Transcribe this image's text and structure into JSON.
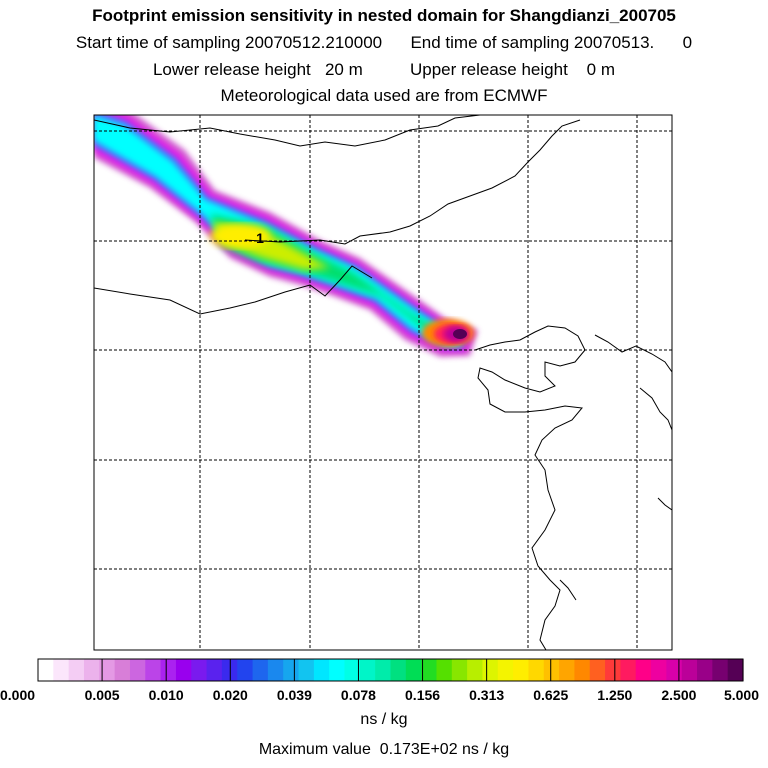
{
  "chart_data": {
    "type": "heatmap",
    "title": "Footprint emission sensitivity in nested domain for Shangdianzi_200705",
    "subtitle_lines": [
      "Start time of sampling 20070512.210000      End time of sampling 20070513.      0",
      "Lower release height   20 m          Upper release height    0 m",
      "Meteorological data used are from ECMWF"
    ],
    "colorbar": {
      "tick_labels": [
        "0.000",
        "0.005",
        "0.010",
        "0.020",
        "0.039",
        "0.078",
        "0.156",
        "0.313",
        "0.625",
        "1.250",
        "2.500",
        "5.000"
      ],
      "unit_label": "ns / kg",
      "colors": [
        "#ffffff",
        "#fbe6fb",
        "#f4cdf4",
        "#ecb2ec",
        "#e499e4",
        "#d87ed8",
        "#cc66e0",
        "#bb44e8",
        "#aa22f0",
        "#9900ee",
        "#7a1aee",
        "#5a22ee",
        "#3a2aee",
        "#2244ee",
        "#1e66ee",
        "#1a88ee",
        "#16a6ee",
        "#12c4f0",
        "#00e6ff",
        "#00ffff",
        "#00ffe6",
        "#00f5c8",
        "#00ecaa",
        "#00e080",
        "#00dd55",
        "#22dd22",
        "#55e000",
        "#88e600",
        "#b8ee00",
        "#ddf500",
        "#f4f400",
        "#ffee00",
        "#ffd800",
        "#ffc000",
        "#ffa500",
        "#ff8800",
        "#ff6020",
        "#ff3a3a",
        "#ff1a60",
        "#ff0088",
        "#ee00a0",
        "#d800aa",
        "#bb0099",
        "#990088",
        "#770070",
        "#550055"
      ]
    },
    "annotation": "1",
    "max_value_label": "Maximum value  0.173E+02 ns / kg"
  }
}
